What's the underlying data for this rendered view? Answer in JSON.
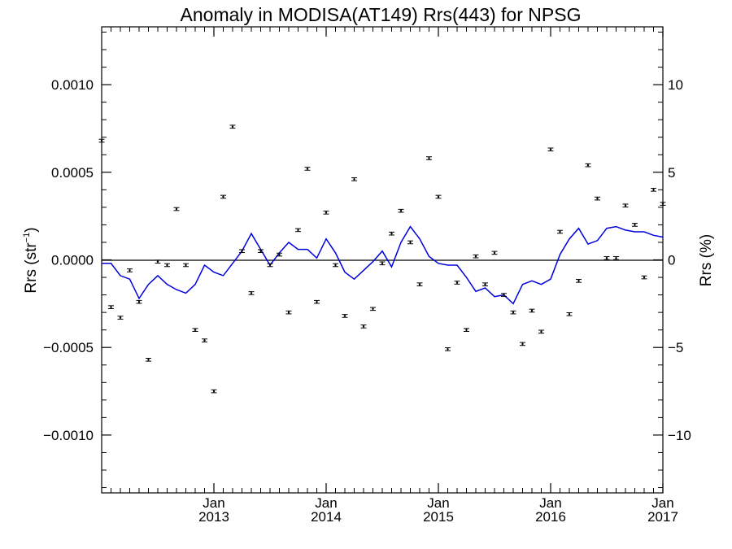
{
  "chart_data": {
    "type": "scatter",
    "title": "Anomaly in MODISA(AT149) Rrs(443) for NPSG",
    "ylabel_left": "Rrs (str",
    "ylabel_left_sup": "−1",
    "ylabel_left_close": ")",
    "ylabel_right": "Rrs (%)",
    "x_range": [
      "2012-01",
      "2017-01"
    ],
    "ylim_left": [
      -0.00133,
      0.00133
    ],
    "ylim_right": [
      -13.3,
      13.3
    ],
    "x_ticks": [
      {
        "month": "Jan",
        "year": "2013",
        "date": "2013-01"
      },
      {
        "month": "Jan",
        "year": "2014",
        "date": "2014-01"
      },
      {
        "month": "Jan",
        "year": "2015",
        "date": "2015-01"
      },
      {
        "month": "Jan",
        "year": "2016",
        "date": "2016-01"
      },
      {
        "month": "Jan",
        "year": "2017",
        "date": "2017-01"
      }
    ],
    "y_ticks_left": [
      {
        "value": 0.001,
        "label": "0.0010"
      },
      {
        "value": 0.0005,
        "label": "0.0005"
      },
      {
        "value": 0.0,
        "label": "0.0000"
      },
      {
        "value": -0.0005,
        "label": "−0.0005"
      },
      {
        "value": -0.001,
        "label": "−0.0010"
      }
    ],
    "y_ticks_right": [
      {
        "value": 10,
        "label": "10"
      },
      {
        "value": 5,
        "label": "5"
      },
      {
        "value": 0,
        "label": "0"
      },
      {
        "value": -5,
        "label": "−5"
      },
      {
        "value": -10,
        "label": "−10"
      }
    ],
    "grid": false,
    "zero_line": true,
    "series": [
      {
        "type": "scatter",
        "axis": "left",
        "error_bars": true,
        "error": 5e-06,
        "color": "#000000",
        "x": [
          "2012-01",
          "2012-02",
          "2012-03",
          "2012-04",
          "2012-05",
          "2012-06",
          "2012-07",
          "2012-08",
          "2012-09",
          "2012-10",
          "2012-11",
          "2012-12",
          "2013-01",
          "2013-02",
          "2013-03",
          "2013-04",
          "2013-05",
          "2013-06",
          "2013-07",
          "2013-08",
          "2013-09",
          "2013-10",
          "2013-11",
          "2013-12",
          "2014-01",
          "2014-02",
          "2014-03",
          "2014-04",
          "2014-05",
          "2014-06",
          "2014-07",
          "2014-08",
          "2014-09",
          "2014-10",
          "2014-11",
          "2014-12",
          "2015-01",
          "2015-02",
          "2015-03",
          "2015-04",
          "2015-05",
          "2015-06",
          "2015-07",
          "2015-08",
          "2015-09",
          "2015-10",
          "2015-11",
          "2015-12",
          "2016-01",
          "2016-02",
          "2016-03",
          "2016-04",
          "2016-05",
          "2016-06",
          "2016-07",
          "2016-08",
          "2016-09",
          "2016-10",
          "2016-11",
          "2016-12",
          "2017-01"
        ],
        "y": [
          0.00068,
          -0.00027,
          -0.00033,
          -6e-05,
          -0.00024,
          -0.00057,
          -1e-05,
          -3e-05,
          0.00029,
          -3e-05,
          -0.0004,
          -0.00046,
          -0.00075,
          0.00036,
          0.00076,
          5e-05,
          -0.00019,
          5e-05,
          -3e-05,
          3e-05,
          -0.0003,
          0.00017,
          0.00052,
          -0.00024,
          0.00027,
          -3e-05,
          -0.00032,
          0.00046,
          -0.00038,
          -0.00028,
          -2e-05,
          0.00015,
          0.00028,
          0.0001,
          -0.00014,
          0.00058,
          0.00036,
          -0.00051,
          -0.00013,
          -0.0004,
          2e-05,
          -0.00014,
          4e-05,
          -0.0002,
          -0.0003,
          -0.00048,
          -0.00029,
          -0.00041,
          0.00063,
          0.00016,
          -0.00031,
          -0.00012,
          0.00054,
          0.00035,
          1e-05,
          1e-05,
          0.00031,
          0.0002,
          -0.0001,
          0.0004,
          0.00032
        ]
      },
      {
        "type": "line",
        "axis": "right",
        "color": "#0000dd",
        "x": [
          "2012-01",
          "2012-02",
          "2012-03",
          "2012-04",
          "2012-05",
          "2012-06",
          "2012-07",
          "2012-08",
          "2012-09",
          "2012-10",
          "2012-11",
          "2012-12",
          "2013-01",
          "2013-02",
          "2013-03",
          "2013-04",
          "2013-05",
          "2013-06",
          "2013-07",
          "2013-08",
          "2013-09",
          "2013-10",
          "2013-11",
          "2013-12",
          "2014-01",
          "2014-02",
          "2014-03",
          "2014-04",
          "2014-05",
          "2014-06",
          "2014-07",
          "2014-08",
          "2014-09",
          "2014-10",
          "2014-11",
          "2014-12",
          "2015-01",
          "2015-02",
          "2015-03",
          "2015-04",
          "2015-05",
          "2015-06",
          "2015-07",
          "2015-08",
          "2015-09",
          "2015-10",
          "2015-11",
          "2015-12",
          "2016-01",
          "2016-02",
          "2016-03",
          "2016-04",
          "2016-05",
          "2016-06",
          "2016-07",
          "2016-08",
          "2016-09",
          "2016-10",
          "2016-11",
          "2016-12",
          "2017-01"
        ],
        "y": [
          -0.2,
          -0.2,
          -0.9,
          -1.1,
          -2.2,
          -1.4,
          -0.9,
          -1.4,
          -1.7,
          -1.9,
          -1.4,
          -0.3,
          -0.7,
          -0.9,
          -0.2,
          0.5,
          1.5,
          0.6,
          -0.3,
          0.4,
          1.0,
          0.6,
          0.6,
          0.1,
          1.2,
          0.4,
          -0.7,
          -1.1,
          -0.6,
          -0.1,
          0.5,
          -0.4,
          1.0,
          1.9,
          1.2,
          0.2,
          -0.2,
          -0.3,
          -0.3,
          -1.0,
          -1.8,
          -1.6,
          -2.1,
          -2.0,
          -2.5,
          -1.4,
          -1.2,
          -1.4,
          -1.1,
          0.3,
          1.2,
          1.8,
          0.9,
          1.1,
          1.8,
          1.9,
          1.7,
          1.6,
          1.6,
          1.4,
          1.3
        ]
      }
    ]
  }
}
